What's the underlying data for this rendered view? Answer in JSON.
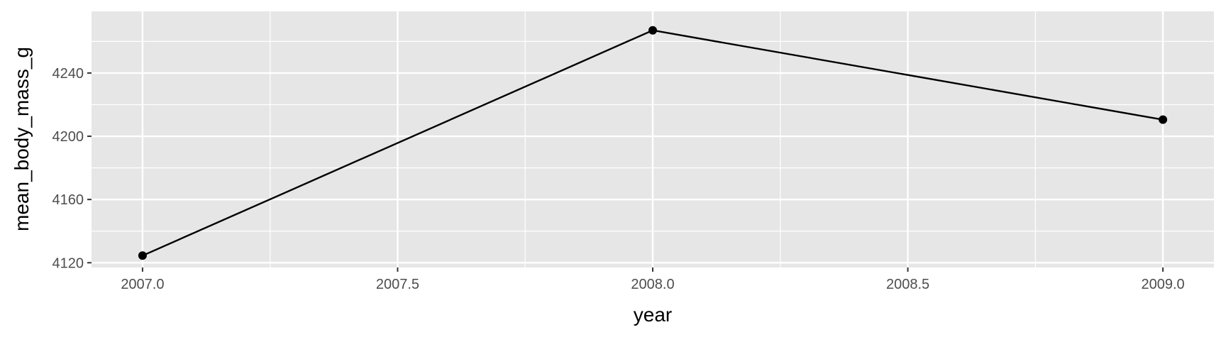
{
  "chart_data": {
    "type": "line",
    "xlabel": "year",
    "ylabel": "mean_body_mass_g",
    "xlim": [
      2006.9,
      2009.1
    ],
    "ylim": [
      4117,
      4279
    ],
    "x_ticks": [
      2007.0,
      2007.5,
      2008.0,
      2008.5,
      2009.0
    ],
    "x_tick_labels": [
      "2007.0",
      "2007.5",
      "2008.0",
      "2008.5",
      "2009.0"
    ],
    "y_ticks": [
      4120,
      4160,
      4200,
      4240
    ],
    "y_tick_labels": [
      "4120",
      "4160",
      "4200",
      "4240"
    ],
    "grid": true,
    "legend": "none",
    "series": [
      {
        "x": [
          2007,
          2008,
          2009
        ],
        "y": [
          4124.5,
          4267.0,
          4210.5
        ],
        "color": "#000000"
      }
    ],
    "panel_color": "#e6e6e6",
    "grid_color": "#ffffff"
  }
}
